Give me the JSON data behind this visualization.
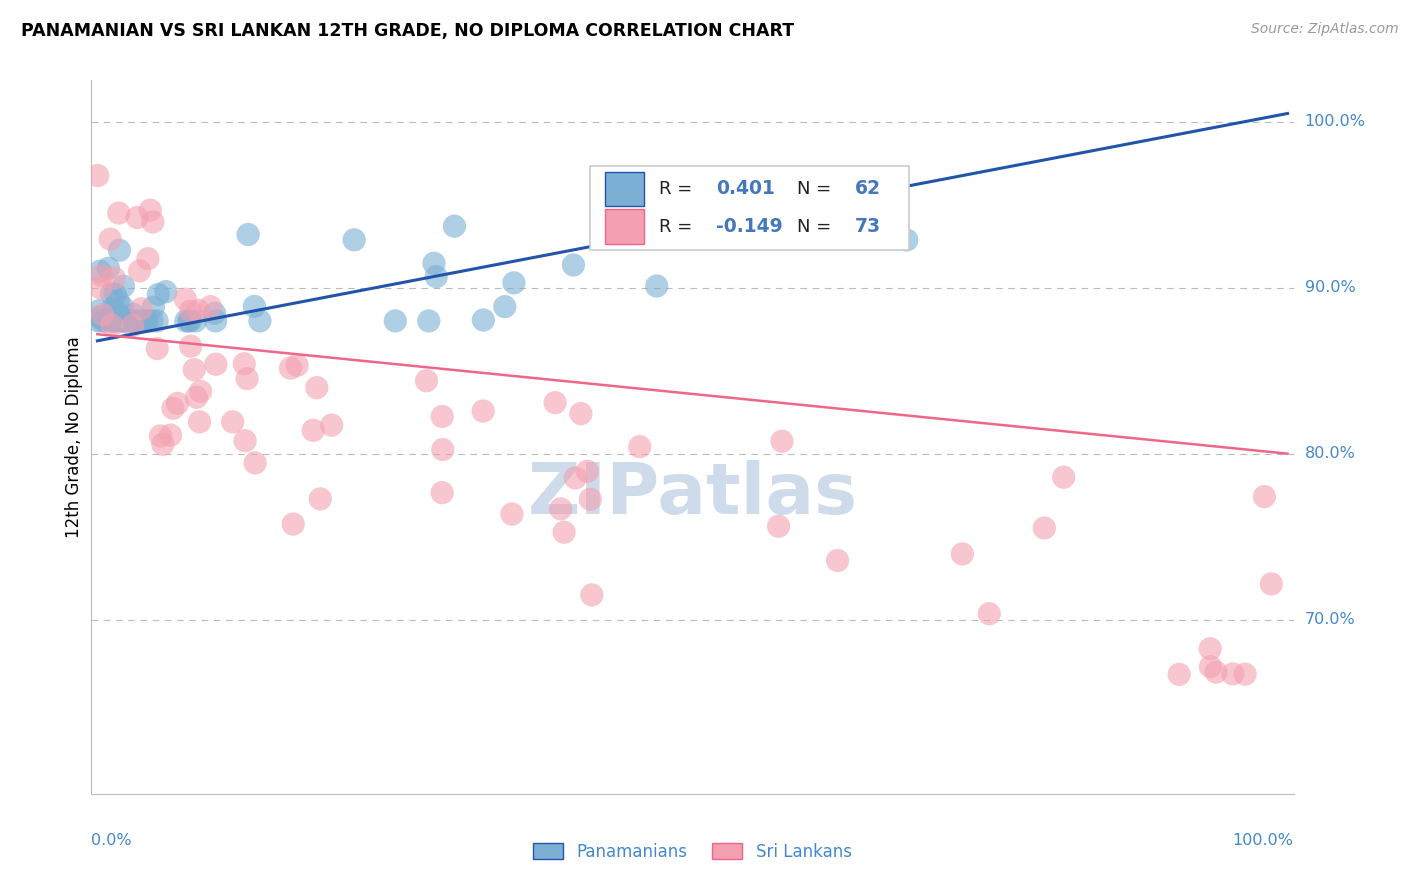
{
  "title": "PANAMANIAN VS SRI LANKAN 12TH GRADE, NO DIPLOMA CORRELATION CHART",
  "source": "Source: ZipAtlas.com",
  "ylabel": "12th Grade, No Diploma",
  "ylim": [
    0.595,
    1.025
  ],
  "xlim": [
    -0.005,
    1.005
  ],
  "ytick_vals": [
    0.7,
    0.8,
    0.9,
    1.0
  ],
  "ytick_labels": [
    "70.0%",
    "80.0%",
    "90.0%",
    "100.0%"
  ],
  "blue_R": 0.401,
  "blue_N": 62,
  "pink_R": -0.149,
  "pink_N": 73,
  "blue_line_start_y": 0.868,
  "blue_line_end_y": 1.005,
  "pink_line_start_y": 0.872,
  "pink_line_end_y": 0.8,
  "blue_color": "#7BAFD4",
  "pink_color": "#F4A0B0",
  "blue_line_color": "#2255AA",
  "pink_line_color": "#EE6688",
  "legend_color_blue": "#4477BB",
  "legend_color_pink": "#DD4466",
  "label_color": "#4488CC",
  "watermark_color": "#C8D8E8",
  "grid_color": "#BBBBBB",
  "background_color": "#FFFFFF",
  "blue_seed": 1234,
  "pink_seed": 5678
}
